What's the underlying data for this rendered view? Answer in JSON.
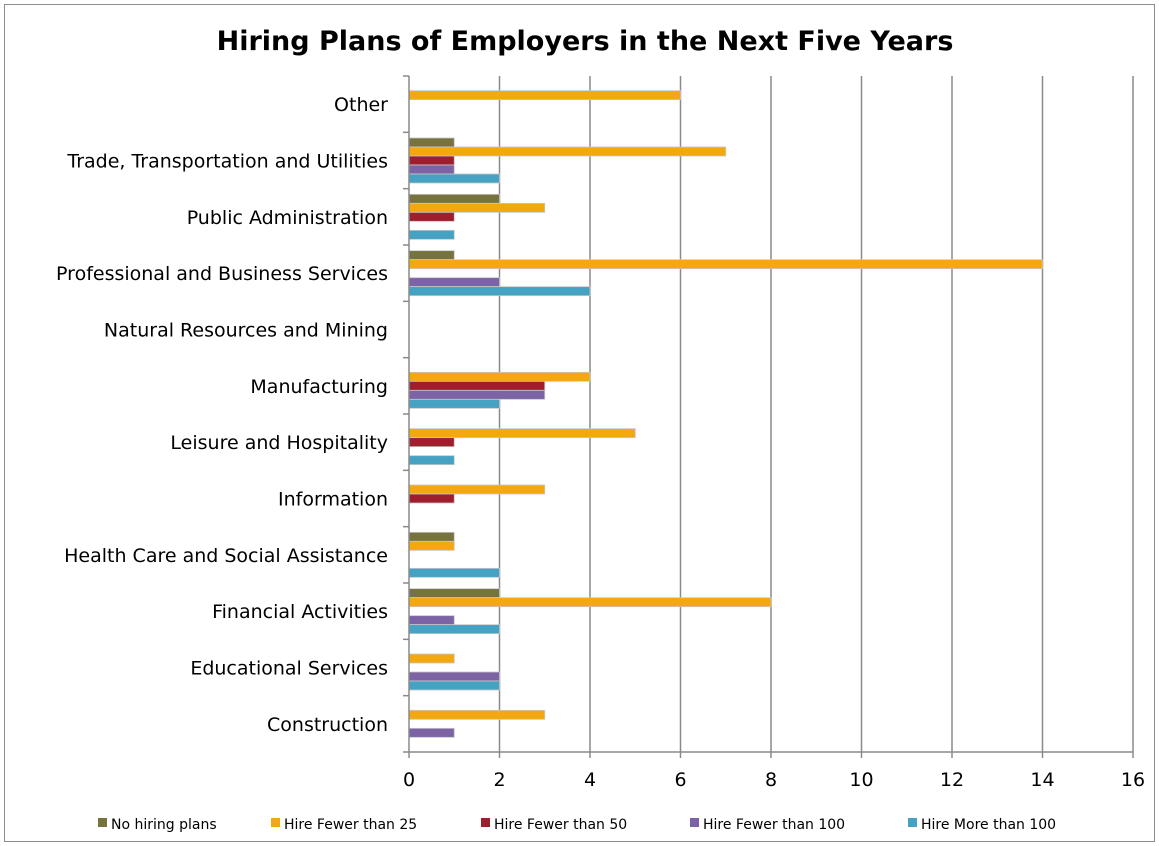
{
  "chart_data": {
    "type": "bar",
    "orientation": "horizontal",
    "title": "Hiring Plans of Employers in the Next Five Years",
    "xlabel": "",
    "ylabel": "",
    "xlim": [
      0,
      16
    ],
    "x_ticks": [
      "0",
      "2",
      "4",
      "6",
      "8",
      "10",
      "12",
      "14",
      "16"
    ],
    "grid": "vertical",
    "legend_position": "bottom",
    "categories": [
      "Construction",
      "Educational Services",
      "Financial Activities",
      "Health Care and Social Assistance",
      "Information",
      "Leisure and Hospitality",
      "Manufacturing",
      "Natural Resources and Mining",
      "Professional and Business Services",
      "Public Administration",
      "Trade, Transportation and Utilities",
      "Other"
    ],
    "series": [
      {
        "name": "No hiring plans",
        "color": "#77733f",
        "values": [
          0,
          0,
          2,
          1,
          0,
          0,
          0,
          0,
          1,
          2,
          1,
          0
        ]
      },
      {
        "name": "Hire Fewer than 25",
        "color": "#f3a80f",
        "values": [
          3,
          1,
          8,
          1,
          3,
          5,
          4,
          0,
          14,
          3,
          7,
          6
        ]
      },
      {
        "name": "Hire Fewer than 50",
        "color": "#9e1e2d",
        "values": [
          0,
          0,
          0,
          0,
          1,
          1,
          3,
          0,
          0,
          1,
          1,
          0
        ]
      },
      {
        "name": "Hire Fewer than 100",
        "color": "#7c63a5",
        "values": [
          1,
          2,
          1,
          0,
          0,
          0,
          3,
          0,
          2,
          0,
          1,
          0
        ]
      },
      {
        "name": "Hire More than 100",
        "color": "#45a2c2",
        "values": [
          0,
          2,
          2,
          2,
          0,
          1,
          2,
          0,
          4,
          1,
          2,
          0
        ]
      }
    ]
  }
}
